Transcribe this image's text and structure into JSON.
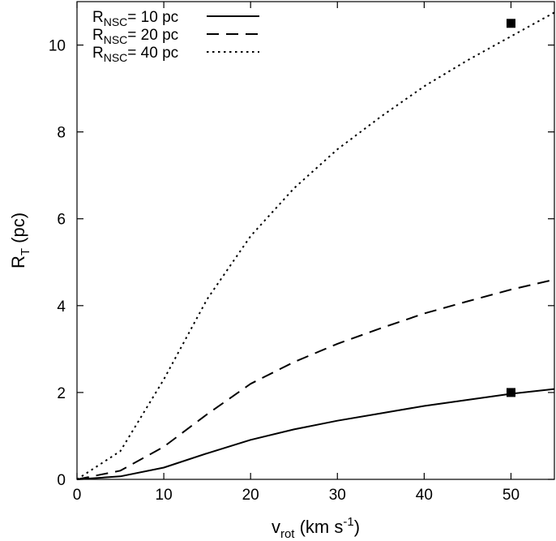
{
  "chart_data": {
    "type": "line",
    "title": "",
    "xlabel": {
      "base": "v",
      "sub": "rot",
      "unit_pre": " (km s",
      "unit_sup": "-1",
      "unit_post": ")"
    },
    "ylabel": {
      "base": "R",
      "sub": "T",
      "unit": " (pc)"
    },
    "xlim": [
      0,
      55
    ],
    "ylim": [
      0,
      11
    ],
    "xticks": [
      0,
      10,
      20,
      30,
      40,
      50
    ],
    "yticks": [
      0,
      2,
      4,
      6,
      8,
      10
    ],
    "grid": false,
    "legend_position": "top-left",
    "series": [
      {
        "name": {
          "base": "R",
          "sub": "NSC",
          "rest": "= 10 pc"
        },
        "style": "solid",
        "color": "#000000",
        "x": [
          0,
          5,
          10,
          15,
          20,
          25,
          30,
          35,
          40,
          45,
          50,
          55
        ],
        "y": [
          0,
          0.07,
          0.27,
          0.6,
          0.91,
          1.15,
          1.35,
          1.52,
          1.69,
          1.83,
          1.97,
          2.08
        ]
      },
      {
        "name": {
          "base": "R",
          "sub": "NSC",
          "rest": "= 20 pc"
        },
        "style": "dashed",
        "color": "#000000",
        "x": [
          0,
          5,
          10,
          15,
          20,
          25,
          30,
          35,
          40,
          45,
          50,
          55
        ],
        "y": [
          0,
          0.2,
          0.75,
          1.5,
          2.2,
          2.7,
          3.12,
          3.48,
          3.82,
          4.1,
          4.37,
          4.6
        ]
      },
      {
        "name": {
          "base": "R",
          "sub": "NSC",
          "rest": "= 40 pc"
        },
        "style": "dotted",
        "color": "#000000",
        "x": [
          0,
          5,
          10,
          15,
          20,
          25,
          30,
          35,
          40,
          45,
          50,
          55
        ],
        "y": [
          0,
          0.65,
          2.3,
          4.15,
          5.6,
          6.7,
          7.6,
          8.35,
          9.05,
          9.65,
          10.2,
          10.75
        ]
      }
    ],
    "markers": [
      {
        "x": 50,
        "y": 10.5,
        "shape": "square"
      },
      {
        "x": 50,
        "y": 2.0,
        "shape": "square"
      }
    ]
  }
}
